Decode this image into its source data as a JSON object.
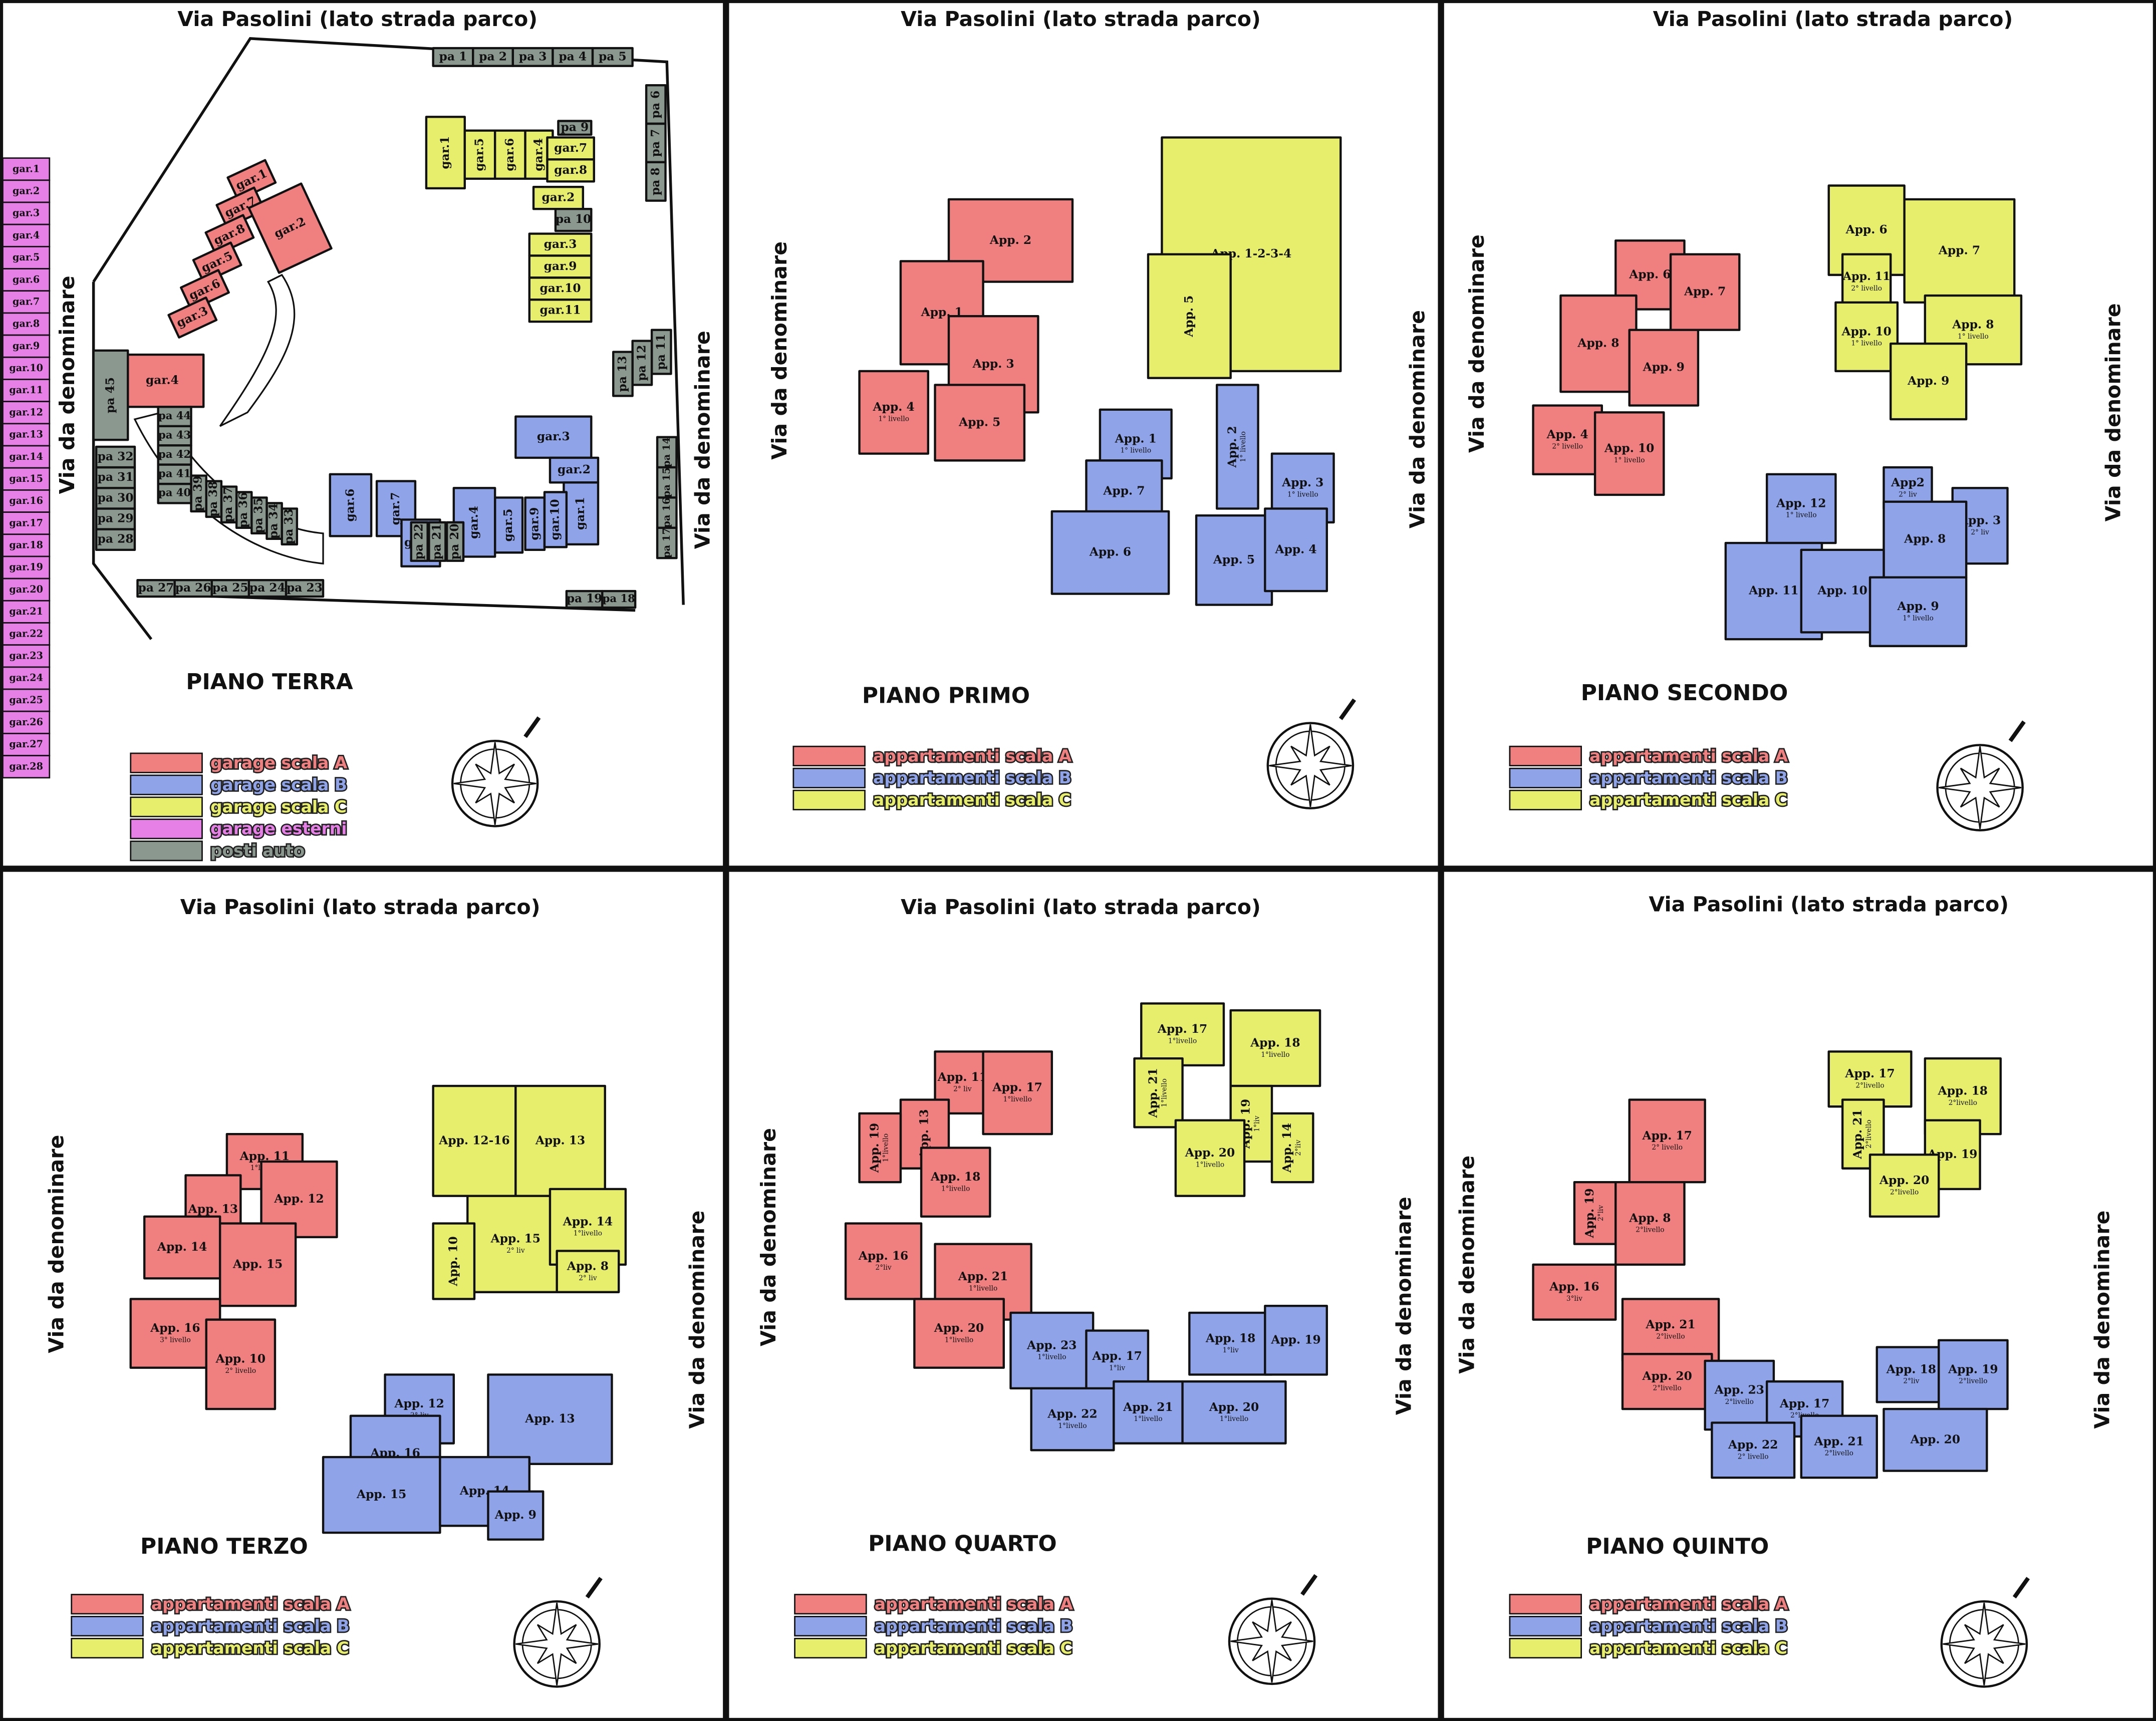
{
  "external_garages": {
    "color": "#e680e6",
    "labels": [
      "gar.1",
      "gar.2",
      "gar.3",
      "gar.4",
      "gar.5",
      "gar.6",
      "gar.7",
      "gar.8",
      "gar.9",
      "gar.10",
      "gar.11",
      "gar.12",
      "gar.13",
      "gar.14",
      "gar.15",
      "gar.16",
      "gar.17",
      "gar.18",
      "gar.19",
      "gar.20",
      "gar.21",
      "gar.22",
      "gar.23",
      "gar.24",
      "gar.25",
      "gar.26",
      "gar.27",
      "gar.28"
    ]
  },
  "panels": [
    {
      "title": "Via Pasolini (lato strada parco)",
      "left": "Via da denominare",
      "right": "Via da denominare",
      "floor": "PIANO TERRA",
      "legend": [
        {
          "label": "garage scala A",
          "color": "#f08080"
        },
        {
          "label": "garage scala B",
          "color": "#8fa3e8"
        },
        {
          "label": "garage scala C",
          "color": "#e6ee6c"
        },
        {
          "label": "garage esterni",
          "color": "#e680e6"
        },
        {
          "label": "posti auto",
          "color": "#8b9890"
        }
      ],
      "units": [
        {
          "label": "gar.1",
          "color": "#f08080"
        },
        {
          "label": "gar.7",
          "color": "#f08080"
        },
        {
          "label": "gar.8",
          "color": "#f08080"
        },
        {
          "label": "gar.5",
          "color": "#f08080"
        },
        {
          "label": "gar.6",
          "color": "#f08080"
        },
        {
          "label": "gar.3",
          "color": "#f08080"
        },
        {
          "label": "gar.2",
          "color": "#f08080"
        },
        {
          "label": "gar.4",
          "color": "#f08080"
        },
        {
          "label": "gar.1",
          "color": "#e6ee6c"
        },
        {
          "label": "gar.5",
          "color": "#e6ee6c"
        },
        {
          "label": "gar.6",
          "color": "#e6ee6c"
        },
        {
          "label": "gar.4",
          "color": "#e6ee6c"
        },
        {
          "label": "gar.7",
          "color": "#e6ee6c"
        },
        {
          "label": "gar.8",
          "color": "#e6ee6c"
        },
        {
          "label": "gar.2",
          "color": "#e6ee6c"
        },
        {
          "label": "gar.3",
          "color": "#e6ee6c"
        },
        {
          "label": "gar.9",
          "color": "#e6ee6c"
        },
        {
          "label": "gar.10",
          "color": "#e6ee6c"
        },
        {
          "label": "gar.11",
          "color": "#e6ee6c"
        },
        {
          "label": "gar.3",
          "color": "#8fa3e8"
        },
        {
          "label": "gar.2",
          "color": "#8fa3e8"
        },
        {
          "label": "gar.1",
          "color": "#8fa3e8"
        },
        {
          "label": "gar.5",
          "color": "#8fa3e8"
        },
        {
          "label": "gar.9",
          "color": "#8fa3e8"
        },
        {
          "label": "gar.10",
          "color": "#8fa3e8"
        },
        {
          "label": "gar.4",
          "color": "#8fa3e8"
        },
        {
          "label": "gar.6",
          "color": "#8fa3e8"
        },
        {
          "label": "gar.7",
          "color": "#8fa3e8"
        },
        {
          "label": "gar.8",
          "color": "#8fa3e8"
        },
        {
          "label": "pa 1",
          "color": "#8b9890"
        },
        {
          "label": "pa 2",
          "color": "#8b9890"
        },
        {
          "label": "pa 3",
          "color": "#8b9890"
        },
        {
          "label": "pa 4",
          "color": "#8b9890"
        },
        {
          "label": "pa 5",
          "color": "#8b9890"
        },
        {
          "label": "pa 6",
          "color": "#8b9890"
        },
        {
          "label": "pa 7",
          "color": "#8b9890"
        },
        {
          "label": "pa 8",
          "color": "#8b9890"
        },
        {
          "label": "pa 9",
          "color": "#8b9890"
        },
        {
          "label": "pa 10",
          "color": "#8b9890"
        },
        {
          "label": "pa 11",
          "color": "#8b9890"
        },
        {
          "label": "pa 12",
          "color": "#8b9890"
        },
        {
          "label": "pa 13",
          "color": "#8b9890"
        },
        {
          "label": "pa 14",
          "color": "#8b9890"
        },
        {
          "label": "pa 15",
          "color": "#8b9890"
        },
        {
          "label": "pa 16",
          "color": "#8b9890"
        },
        {
          "label": "pa 17",
          "color": "#8b9890"
        },
        {
          "label": "pa 18",
          "color": "#8b9890"
        },
        {
          "label": "pa 19",
          "color": "#8b9890"
        },
        {
          "label": "pa 20",
          "color": "#8b9890"
        },
        {
          "label": "pa 21",
          "color": "#8b9890"
        },
        {
          "label": "pa 22",
          "color": "#8b9890"
        },
        {
          "label": "pa 23",
          "color": "#8b9890"
        },
        {
          "label": "pa 24",
          "color": "#8b9890"
        },
        {
          "label": "pa 25",
          "color": "#8b9890"
        },
        {
          "label": "pa 26",
          "color": "#8b9890"
        },
        {
          "label": "pa 27",
          "color": "#8b9890"
        },
        {
          "label": "pa 28",
          "color": "#8b9890"
        },
        {
          "label": "pa 29",
          "color": "#8b9890"
        },
        {
          "label": "pa 30",
          "color": "#8b9890"
        },
        {
          "label": "pa 31",
          "color": "#8b9890"
        },
        {
          "label": "pa 32",
          "color": "#8b9890"
        },
        {
          "label": "pa 33",
          "color": "#8b9890"
        },
        {
          "label": "pa 34",
          "color": "#8b9890"
        },
        {
          "label": "pa 35",
          "color": "#8b9890"
        },
        {
          "label": "pa 36",
          "color": "#8b9890"
        },
        {
          "label": "pa 37",
          "color": "#8b9890"
        },
        {
          "label": "pa 38",
          "color": "#8b9890"
        },
        {
          "label": "pa 39",
          "color": "#8b9890"
        },
        {
          "label": "pa 40",
          "color": "#8b9890"
        },
        {
          "label": "pa 41",
          "color": "#8b9890"
        },
        {
          "label": "pa 42",
          "color": "#8b9890"
        },
        {
          "label": "pa 43",
          "color": "#8b9890"
        },
        {
          "label": "pa 44",
          "color": "#8b9890"
        },
        {
          "label": "pa 45",
          "color": "#8b9890"
        }
      ]
    },
    {
      "title": "Via Pasolini (lato strada parco)",
      "left": "Via da denominare",
      "right": "Via da denominare",
      "floor": "PIANO PRIMO",
      "legend": [
        {
          "label": "appartamenti scala A",
          "color": "#f08080"
        },
        {
          "label": "appartamenti scala B",
          "color": "#8fa3e8"
        },
        {
          "label": "appartamenti scala C",
          "color": "#e6ee6c"
        }
      ],
      "units": [
        {
          "label": "App. 2",
          "color": "#f08080"
        },
        {
          "label": "App. 1",
          "color": "#f08080"
        },
        {
          "label": "App. 3",
          "color": "#f08080"
        },
        {
          "label": "App. 4",
          "sub": "1° livello",
          "color": "#f08080"
        },
        {
          "label": "App. 5",
          "color": "#f08080"
        },
        {
          "label": "App. 1-2-3-4",
          "color": "#e6ee6c"
        },
        {
          "label": "App. 5",
          "color": "#e6ee6c"
        },
        {
          "label": "App. 2",
          "sub": "1° livello",
          "color": "#8fa3e8"
        },
        {
          "label": "App. 1",
          "sub": "1° livello",
          "color": "#8fa3e8"
        },
        {
          "label": "App. 7",
          "color": "#8fa3e8"
        },
        {
          "label": "App. 6",
          "color": "#8fa3e8"
        },
        {
          "label": "App. 3",
          "sub": "1° livello",
          "color": "#8fa3e8"
        },
        {
          "label": "App. 5",
          "color": "#8fa3e8"
        },
        {
          "label": "App. 4",
          "color": "#8fa3e8"
        }
      ]
    },
    {
      "title": "Via Pasolini (lato strada parco)",
      "left": "Via da denominare",
      "right": "Via da denominare",
      "floor": "PIANO SECONDO",
      "legend": [
        {
          "label": "appartamenti scala A",
          "color": "#f08080"
        },
        {
          "label": "appartamenti scala B",
          "color": "#8fa3e8"
        },
        {
          "label": "appartamenti scala C",
          "color": "#e6ee6c"
        }
      ],
      "units": [
        {
          "label": "App. 6",
          "color": "#f08080"
        },
        {
          "label": "App. 7",
          "color": "#f08080"
        },
        {
          "label": "App. 8",
          "color": "#f08080"
        },
        {
          "label": "App. 9",
          "color": "#f08080"
        },
        {
          "label": "App. 4",
          "sub": "2° livello",
          "color": "#f08080"
        },
        {
          "label": "App. 10",
          "sub": "1° livello",
          "color": "#f08080"
        },
        {
          "label": "App. 6",
          "color": "#e6ee6c"
        },
        {
          "label": "App. 7",
          "color": "#e6ee6c"
        },
        {
          "label": "App. 11",
          "sub": "2° livello",
          "color": "#e6ee6c"
        },
        {
          "label": "App. 10",
          "sub": "1° livello",
          "color": "#e6ee6c"
        },
        {
          "label": "App. 8",
          "sub": "1° livello",
          "color": "#e6ee6c"
        },
        {
          "label": "App. 9",
          "color": "#e6ee6c"
        },
        {
          "label": "App. 12",
          "sub": "1° livello",
          "color": "#8fa3e8"
        },
        {
          "label": "App2",
          "sub": "2° liv",
          "color": "#8fa3e8"
        },
        {
          "label": "App. 3",
          "sub": "2° liv",
          "color": "#8fa3e8"
        },
        {
          "label": "App. 8",
          "color": "#8fa3e8"
        },
        {
          "label": "App. 11",
          "color": "#8fa3e8"
        },
        {
          "label": "App. 10",
          "color": "#8fa3e8"
        },
        {
          "label": "App. 9",
          "sub": "1° livello",
          "color": "#8fa3e8"
        }
      ]
    },
    {
      "title": "Via Pasolini (lato strada parco)",
      "left": "Via da denominare",
      "right": "Via da denominare",
      "floor": "PIANO TERZO",
      "legend": [
        {
          "label": "appartamenti scala A",
          "color": "#f08080"
        },
        {
          "label": "appartamenti scala B",
          "color": "#8fa3e8"
        },
        {
          "label": "appartamenti scala C",
          "color": "#e6ee6c"
        }
      ],
      "units": [
        {
          "label": "App. 11",
          "sub": "1°livello",
          "color": "#f08080"
        },
        {
          "label": "App. 12",
          "color": "#f08080"
        },
        {
          "label": "App. 13",
          "color": "#f08080"
        },
        {
          "label": "App. 14",
          "color": "#f08080"
        },
        {
          "label": "App. 15",
          "color": "#f08080"
        },
        {
          "label": "App. 16",
          "sub": "3° livello",
          "color": "#f08080"
        },
        {
          "label": "App. 10",
          "sub": "2° livello",
          "color": "#f08080"
        },
        {
          "label": "App. 12-16",
          "color": "#e6ee6c"
        },
        {
          "label": "App. 13",
          "color": "#e6ee6c"
        },
        {
          "label": "App. 15",
          "sub": "2° liv",
          "color": "#e6ee6c"
        },
        {
          "label": "App. 14",
          "sub": "1°livello",
          "color": "#e6ee6c"
        },
        {
          "label": "App. 10",
          "color": "#e6ee6c"
        },
        {
          "label": "App. 8",
          "sub": "2° liv",
          "color": "#e6ee6c"
        },
        {
          "label": "App. 12",
          "sub": "2° liv",
          "color": "#8fa3e8"
        },
        {
          "label": "App. 13",
          "color": "#8fa3e8"
        },
        {
          "label": "App. 16",
          "color": "#8fa3e8"
        },
        {
          "label": "App. 15",
          "color": "#8fa3e8"
        },
        {
          "label": "App. 14",
          "color": "#8fa3e8"
        },
        {
          "label": "App. 9",
          "color": "#8fa3e8"
        }
      ]
    },
    {
      "title": "Via Pasolini (lato strada parco)",
      "left": "Via da denominare",
      "right": "Via da denominare",
      "floor": "PIANO QUARTO",
      "legend": [
        {
          "label": "appartamenti scala A",
          "color": "#f08080"
        },
        {
          "label": "appartamenti scala B",
          "color": "#8fa3e8"
        },
        {
          "label": "appartamenti scala C",
          "color": "#e6ee6c"
        }
      ],
      "units": [
        {
          "label": "App. 11",
          "sub": "2° liv",
          "color": "#f08080"
        },
        {
          "label": "App. 17",
          "sub": "1°livello",
          "color": "#f08080"
        },
        {
          "label": "App. 13",
          "color": "#f08080"
        },
        {
          "label": "App. 19",
          "sub": "1°livello",
          "color": "#f08080"
        },
        {
          "label": "App. 18",
          "sub": "1°livello",
          "color": "#f08080"
        },
        {
          "label": "App. 16",
          "sub": "2°liv",
          "color": "#f08080"
        },
        {
          "label": "App. 21",
          "sub": "1°livello",
          "color": "#f08080"
        },
        {
          "label": "App. 20",
          "sub": "1°livello",
          "color": "#f08080"
        },
        {
          "label": "App. 17",
          "sub": "1°livello",
          "color": "#e6ee6c"
        },
        {
          "label": "App. 18",
          "sub": "1°livello",
          "color": "#e6ee6c"
        },
        {
          "label": "App. 21",
          "sub": "1°livello",
          "color": "#e6ee6c"
        },
        {
          "label": "App. 19",
          "sub": "1°liv",
          "color": "#e6ee6c"
        },
        {
          "label": "App. 20",
          "sub": "1°livello",
          "color": "#e6ee6c"
        },
        {
          "label": "App. 14",
          "sub": "2°liv",
          "color": "#e6ee6c"
        },
        {
          "label": "App. 23",
          "sub": "1°livello",
          "color": "#8fa3e8"
        },
        {
          "label": "App. 17",
          "sub": "1°liv",
          "color": "#8fa3e8"
        },
        {
          "label": "App. 18",
          "sub": "1°liv",
          "color": "#8fa3e8"
        },
        {
          "label": "App. 19",
          "color": "#8fa3e8"
        },
        {
          "label": "App. 22",
          "sub": "1°livello",
          "color": "#8fa3e8"
        },
        {
          "label": "App. 21",
          "sub": "1°livello",
          "color": "#8fa3e8"
        },
        {
          "label": "App. 20",
          "sub": "1°livello",
          "color": "#8fa3e8"
        }
      ]
    },
    {
      "title": "Via Pasolini (lato strada parco)",
      "left": "Via da denominare",
      "right": "Via da denominare",
      "floor": "PIANO QUINTO",
      "legend": [
        {
          "label": "appartamenti scala A",
          "color": "#f08080"
        },
        {
          "label": "appartamenti scala B",
          "color": "#8fa3e8"
        },
        {
          "label": "appartamenti scala C",
          "color": "#e6ee6c"
        }
      ],
      "units": [
        {
          "label": "App. 17",
          "sub": "2°livello",
          "color": "#e6ee6c"
        },
        {
          "label": "App. 18",
          "sub": "2°livello",
          "color": "#e6ee6c"
        },
        {
          "label": "App. 21",
          "sub": "2°livello",
          "color": "#e6ee6c"
        },
        {
          "label": "App. 19",
          "color": "#e6ee6c"
        },
        {
          "label": "App. 20",
          "sub": "2°livello",
          "color": "#e6ee6c"
        },
        {
          "label": "App. 17",
          "sub": "2° livello",
          "color": "#f08080"
        },
        {
          "label": "App. 19",
          "sub": "2°liv",
          "color": "#f08080"
        },
        {
          "label": "App. 8",
          "sub": "2°livello",
          "color": "#f08080"
        },
        {
          "label": "App. 16",
          "sub": "3°liv",
          "color": "#f08080"
        },
        {
          "label": "App. 21",
          "sub": "2°livello",
          "color": "#f08080"
        },
        {
          "label": "App. 20",
          "sub": "2°livello",
          "color": "#f08080"
        },
        {
          "label": "App. 23",
          "sub": "2°livello",
          "color": "#8fa3e8"
        },
        {
          "label": "App. 17",
          "sub": "2°livello",
          "color": "#8fa3e8"
        },
        {
          "label": "App. 18",
          "sub": "2°liv",
          "color": "#8fa3e8"
        },
        {
          "label": "App. 19",
          "sub": "2°livello",
          "color": "#8fa3e8"
        },
        {
          "label": "App. 22",
          "sub": "2° livello",
          "color": "#8fa3e8"
        },
        {
          "label": "App. 21",
          "sub": "2°livello",
          "color": "#8fa3e8"
        },
        {
          "label": "App. 20",
          "color": "#8fa3e8"
        }
      ]
    }
  ]
}
